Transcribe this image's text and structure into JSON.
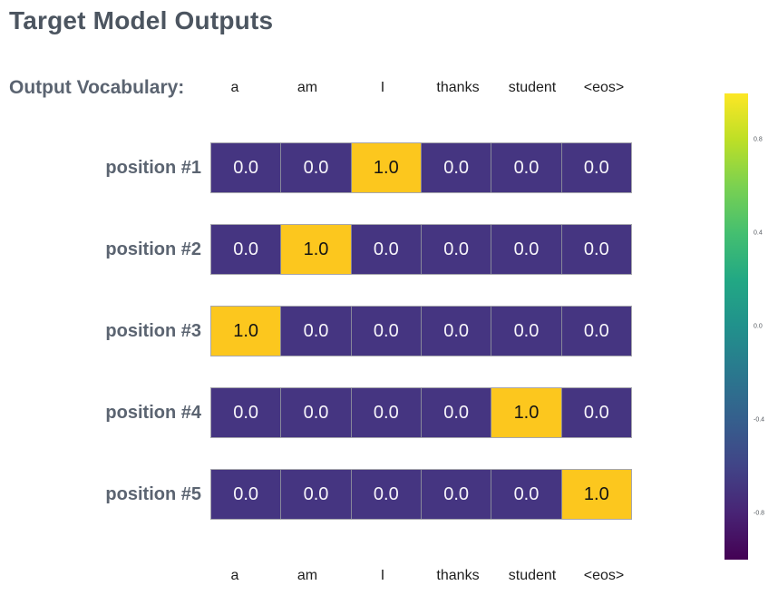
{
  "page": {
    "title": "Target Model Outputs",
    "vocab_label": "Output Vocabulary:"
  },
  "chart_data": {
    "type": "heatmap",
    "title": "Target Model Outputs",
    "columns": [
      "a",
      "am",
      "I",
      "thanks",
      "student",
      "<eos>"
    ],
    "row_labels": [
      "position #1",
      "position #2",
      "position #3",
      "position #4",
      "position #5"
    ],
    "values": [
      [
        0.0,
        0.0,
        1.0,
        0.0,
        0.0,
        0.0
      ],
      [
        0.0,
        1.0,
        0.0,
        0.0,
        0.0,
        0.0
      ],
      [
        1.0,
        0.0,
        0.0,
        0.0,
        0.0,
        0.0
      ],
      [
        0.0,
        0.0,
        0.0,
        0.0,
        1.0,
        0.0
      ],
      [
        0.0,
        0.0,
        0.0,
        0.0,
        0.0,
        1.0
      ]
    ],
    "value_decimals": 1,
    "colorbar": {
      "position": "right",
      "colormap": "viridis",
      "range": [
        -1,
        1
      ],
      "ticks": [
        0.8,
        0.4,
        0.0,
        -0.4,
        -0.8
      ],
      "tick_labels": [
        "0.8",
        "0.4",
        "0.0",
        "-0.4",
        "-0.8"
      ]
    },
    "colors": {
      "cell_low": "#453581",
      "cell_high": "#fcc71e",
      "cell_text_low": "#f7f5fa",
      "cell_text_high": "#141414",
      "title_text": "#4c5560",
      "label_text": "#5b6471",
      "column_label_text": "#1e1e1e"
    },
    "layout_hints": {
      "grid": false,
      "column_labels": "top and bottom",
      "row_labels": "left",
      "legend": "colorbar-right"
    }
  }
}
